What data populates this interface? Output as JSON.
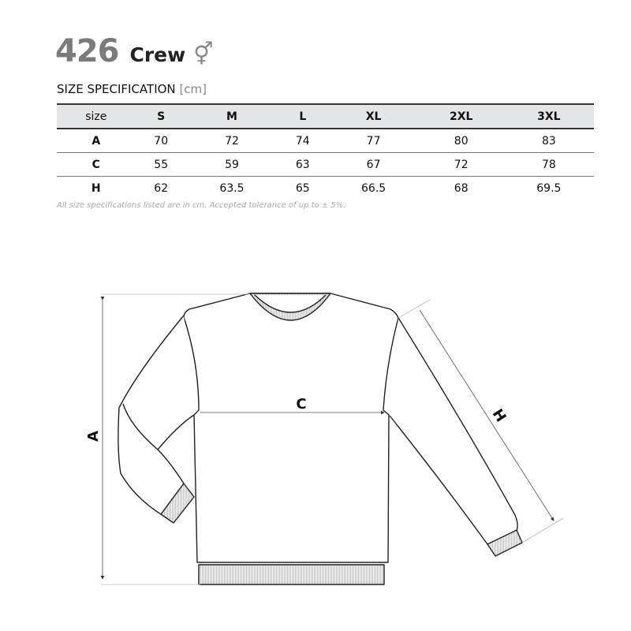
{
  "header": {
    "model_number": "426",
    "model_name": "Crew",
    "gender_icon": "unisex-symbol",
    "gender_symbol": "⚥"
  },
  "spec": {
    "title": "SIZE SPECIFICATION",
    "unit": "[cm]"
  },
  "table": {
    "columns": [
      "size",
      "S",
      "M",
      "L",
      "XL",
      "2XL",
      "3XL"
    ],
    "rows": [
      {
        "label": "A",
        "values": [
          "70",
          "72",
          "74",
          "77",
          "80",
          "83"
        ]
      },
      {
        "label": "C",
        "values": [
          "55",
          "59",
          "63",
          "67",
          "72",
          "78"
        ]
      },
      {
        "label": "H",
        "values": [
          "62",
          "63.5",
          "65",
          "66.5",
          "68",
          "69.5"
        ]
      }
    ]
  },
  "note": "All size specifications listed are in cm. Accepted tolerance of up to ± 5%.",
  "diagram": {
    "label_a": "A",
    "label_c": "C",
    "label_h": "H"
  }
}
